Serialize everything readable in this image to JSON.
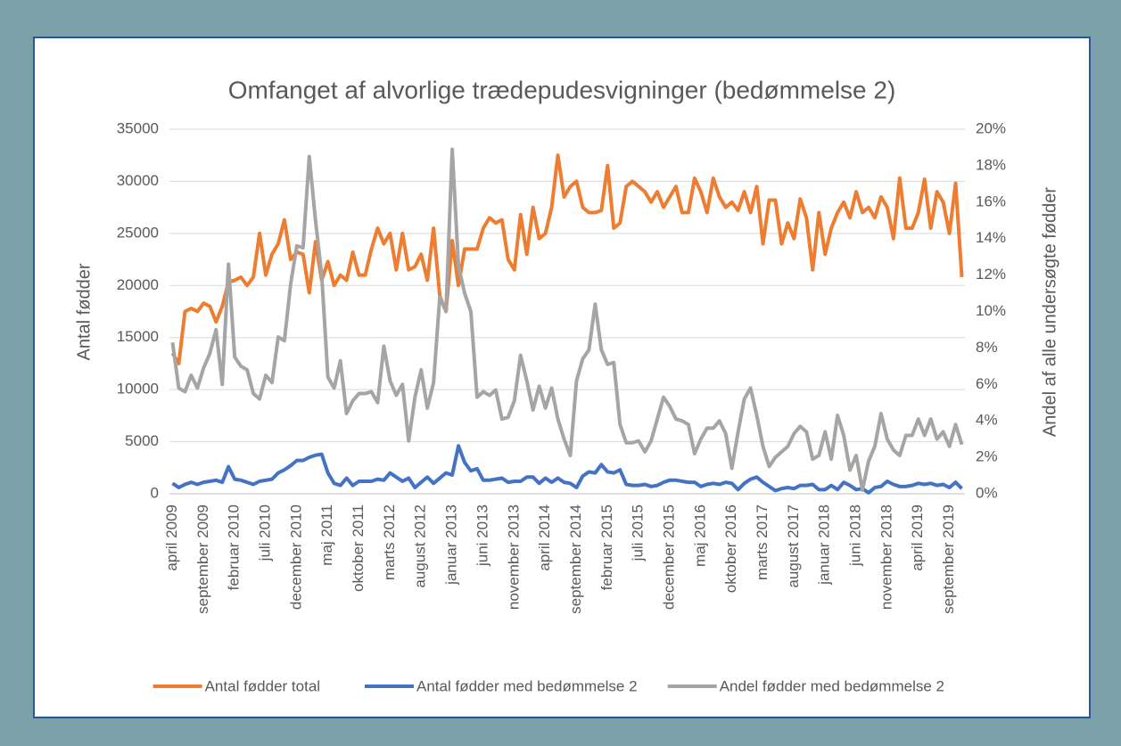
{
  "chart_data": {
    "type": "line",
    "title": "Omfanget af alvorlige trædepudesvigninger (bedømmelse 2)",
    "y_label": "Antal fødder",
    "y2_label": "Andel af alle undersøgte fødder",
    "categories": [
      "april 2009",
      null,
      null,
      null,
      null,
      "september 2009",
      null,
      null,
      null,
      null,
      "februar 2010",
      null,
      null,
      null,
      null,
      "juli 2010",
      null,
      null,
      null,
      null,
      "december 2010",
      null,
      null,
      null,
      null,
      "maj 2011",
      null,
      null,
      null,
      null,
      "oktober 2011",
      null,
      null,
      null,
      null,
      "marts 2012",
      null,
      null,
      null,
      null,
      "august 2012",
      null,
      null,
      null,
      null,
      "januar 2013",
      null,
      null,
      null,
      null,
      "juni 2013",
      null,
      null,
      null,
      null,
      "november 2013",
      null,
      null,
      null,
      null,
      "april 2014",
      null,
      null,
      null,
      null,
      "september 2014",
      null,
      null,
      null,
      null,
      "februar 2015",
      null,
      null,
      null,
      null,
      "juli 2015",
      null,
      null,
      null,
      null,
      "december 2015",
      null,
      null,
      null,
      null,
      "maj 2016",
      null,
      null,
      null,
      null,
      "oktober 2016",
      null,
      null,
      null,
      null,
      "marts 2017",
      null,
      null,
      null,
      null,
      "august 2017",
      null,
      null,
      null,
      null,
      "januar 2018",
      null,
      null,
      null,
      null,
      "juni 2018",
      null,
      null,
      null,
      null,
      "november 2018",
      null,
      null,
      null,
      null,
      "april 2019",
      null,
      null,
      null,
      null,
      "september 2019",
      null,
      null
    ],
    "series": [
      {
        "name": "Antal fødder total",
        "color": "#ed7d31",
        "values": [
          13500,
          12500,
          17500,
          17800,
          17500,
          18300,
          18000,
          16500,
          18000,
          20300,
          20500,
          20800,
          20000,
          20800,
          25000,
          21000,
          23000,
          24000,
          26300,
          22500,
          23200,
          23000,
          19300,
          24200,
          20500,
          22300,
          20000,
          21000,
          20500,
          23200,
          21000,
          21000,
          23500,
          25500,
          24000,
          25000,
          21500,
          25000,
          21500,
          21800,
          23000,
          20500,
          25500,
          19000,
          17500,
          24300,
          20000,
          23500,
          23500,
          23500,
          25500,
          26500,
          26000,
          26300,
          22500,
          21500,
          26800,
          23000,
          27500,
          24500,
          25000,
          27500,
          32500,
          28500,
          29500,
          30000,
          27500,
          27000,
          27000,
          27200,
          31500,
          25500,
          26000,
          29500,
          30000,
          29500,
          29000,
          28000,
          29000,
          27500,
          28500,
          29500,
          27000,
          27000,
          30300,
          29000,
          27000,
          30300,
          28500,
          27500,
          28000,
          27200,
          29000,
          27000,
          29500,
          24000,
          28200,
          28200,
          24000,
          26000,
          24500,
          28300,
          26500,
          21500,
          27000,
          23000,
          25500,
          27000,
          28000,
          26500,
          29000,
          27000,
          27500,
          26500,
          28500,
          27500,
          24500,
          30300,
          25500,
          25500,
          27000,
          30200,
          25500,
          29000,
          28000,
          25000,
          29800,
          20800
        ]
      },
      {
        "name": "Antal fødder med bedømmelse 2",
        "color": "#4472c4",
        "values": [
          1000,
          600,
          900,
          1100,
          900,
          1100,
          1200,
          1300,
          1100,
          2600,
          1400,
          1300,
          1100,
          900,
          1200,
          1300,
          1400,
          2000,
          2300,
          2700,
          3200,
          3200,
          3500,
          3700,
          3800,
          2000,
          1000,
          800,
          1500,
          800,
          1200,
          1200,
          1200,
          1400,
          1300,
          2000,
          1600,
          1200,
          1500,
          600,
          1100,
          1600,
          1000,
          1500,
          2000,
          1800,
          4600,
          3000,
          2200,
          2400,
          1300,
          1300,
          1400,
          1500,
          1100,
          1200,
          1200,
          1600,
          1600,
          1000,
          1500,
          1100,
          1500,
          1100,
          1000,
          600,
          1700,
          2100,
          2000,
          2800,
          2100,
          2000,
          2300,
          900,
          800,
          800,
          900,
          700,
          800,
          1100,
          1300,
          1300,
          1200,
          1100,
          1100,
          700,
          900,
          1000,
          900,
          1100,
          1000,
          400,
          1000,
          1400,
          1600,
          1100,
          700,
          300,
          500,
          600,
          500,
          800,
          800,
          900,
          400,
          400,
          800,
          400,
          1100,
          800,
          400,
          500,
          100,
          600,
          700,
          1200,
          900,
          700,
          700,
          800,
          1000,
          900,
          1000,
          800,
          900,
          600,
          1100,
          500
        ]
      },
      {
        "name": "Andel fødder med bedømmelse 2",
        "color": "#a5a5a5",
        "axis": "y2",
        "values": [
          8.3,
          5.8,
          5.6,
          6.5,
          5.8,
          6.9,
          7.7,
          9,
          6,
          12.6,
          7.5,
          7,
          6.8,
          5.5,
          5.2,
          6.5,
          6.1,
          8.6,
          8.4,
          11.5,
          13.6,
          13.5,
          18.5,
          15,
          12,
          6.4,
          5.8,
          7.3,
          4.4,
          5.1,
          5.5,
          5.5,
          5.6,
          5,
          8.1,
          6.2,
          5.4,
          6,
          2.9,
          5.3,
          6.8,
          4.7,
          6.1,
          10.8,
          10,
          18.9,
          12.5,
          11,
          10,
          5.3,
          5.6,
          5.4,
          5.7,
          4.1,
          4.2,
          5.1,
          7.6,
          6.2,
          4.6,
          5.9,
          4.7,
          5.8,
          4.1,
          3,
          2.1,
          6.2,
          7.4,
          7.9,
          10.4,
          7.9,
          7.1,
          7.2,
          3.8,
          2.8,
          2.8,
          2.9,
          2.3,
          2.9,
          4.1,
          5.3,
          4.8,
          4.1,
          4,
          3.8,
          2.2,
          3,
          3.6,
          3.6,
          4,
          3.3,
          1.4,
          3.4,
          5.2,
          5.8,
          4.3,
          2.6,
          1.5,
          2,
          2.3,
          2.6,
          3.3,
          3.7,
          3.4,
          1.9,
          2.1,
          3.4,
          1.9,
          4.3,
          3.2,
          1.3,
          2.1,
          0.2,
          1.8,
          2.6,
          4.4,
          3,
          2.4,
          2.1,
          3.2,
          3.2,
          4.1,
          3.2,
          4.1,
          3,
          3.4,
          2.6,
          3.8,
          2.7
        ]
      }
    ],
    "ylim": [
      0,
      35000
    ],
    "yticks": [
      0,
      5000,
      10000,
      15000,
      20000,
      25000,
      30000,
      35000
    ],
    "y2lim": [
      0,
      20
    ],
    "y2ticks": [
      {
        "value": 0,
        "label": "0%"
      },
      {
        "value": 2,
        "label": "2%"
      },
      {
        "value": 4,
        "label": "4%"
      },
      {
        "value": 6,
        "label": "6%"
      },
      {
        "value": 8,
        "label": "8%"
      },
      {
        "value": 10,
        "label": "10%"
      },
      {
        "value": 12,
        "label": "12%"
      },
      {
        "value": 14,
        "label": "14%"
      },
      {
        "value": 16,
        "label": "16%"
      },
      {
        "value": 18,
        "label": "18%"
      },
      {
        "value": 20,
        "label": "20%"
      }
    ],
    "grid": true,
    "legend": "bottom"
  }
}
